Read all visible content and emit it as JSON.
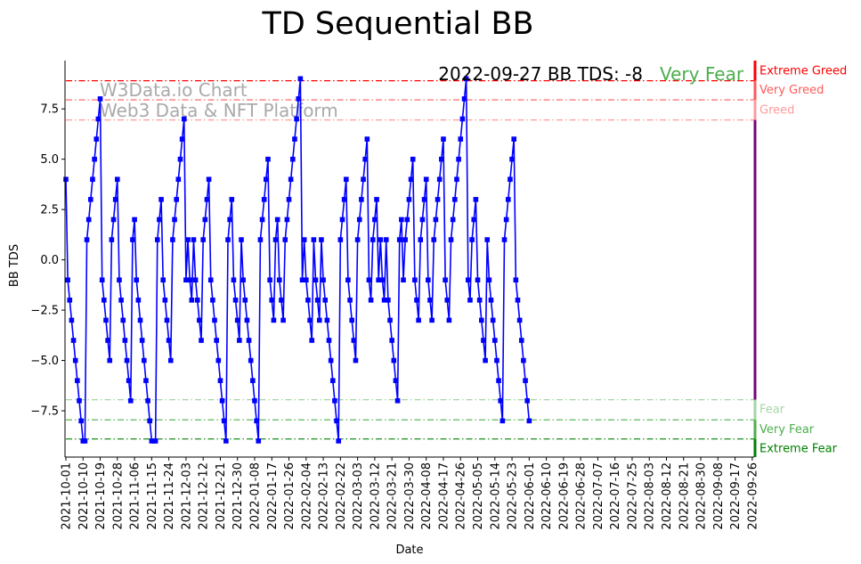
{
  "chart_data": {
    "type": "line",
    "title": "TD Sequential BB",
    "xlabel": "Date",
    "ylabel": "BB TDS",
    "ylim": [
      -9.8,
      9.9
    ],
    "yticks": [
      -7.5,
      -5.0,
      -2.5,
      0.0,
      2.5,
      5.0,
      7.5
    ],
    "ytick_labels": [
      "−7.5",
      "−5.0",
      "−2.5",
      "0.0",
      "2.5",
      "5.0",
      "7.5"
    ],
    "x_start": "2021-10-01",
    "x_end": "2022-09-27",
    "xtick_labels": [
      "2021-10-01",
      "2021-10-10",
      "2021-10-19",
      "2021-10-28",
      "2021-11-06",
      "2021-11-15",
      "2021-11-24",
      "2021-12-03",
      "2021-12-12",
      "2021-12-21",
      "2021-12-30",
      "2022-01-08",
      "2022-01-17",
      "2022-01-26",
      "2022-02-04",
      "2022-02-13",
      "2022-02-22",
      "2022-03-03",
      "2022-03-12",
      "2022-03-21",
      "2022-03-30",
      "2022-04-08",
      "2022-04-17",
      "2022-04-26",
      "2022-05-05",
      "2022-05-14",
      "2022-05-23",
      "2022-06-01",
      "2022-06-10",
      "2022-06-19",
      "2022-06-28",
      "2022-07-07",
      "2022-07-16",
      "2022-07-25",
      "2022-08-03",
      "2022-08-12",
      "2022-08-21",
      "2022-08-30",
      "2022-09-08",
      "2022-09-17",
      "2022-09-26"
    ],
    "series": [
      {
        "color": "#0000ff",
        "marker": "square",
        "values": [
          4,
          -1,
          -2,
          -3,
          -4,
          -5,
          -6,
          -7,
          -8,
          -9,
          -9,
          1,
          2,
          3,
          4,
          5,
          6,
          7,
          8,
          -1,
          -2,
          -3,
          -4,
          -5,
          1,
          2,
          3,
          4,
          -1,
          -2,
          -3,
          -4,
          -5,
          -6,
          -7,
          1,
          2,
          -1,
          -2,
          -3,
          -4,
          -5,
          -6,
          -7,
          -8,
          -9,
          -9,
          -9,
          1,
          2,
          3,
          -1,
          -2,
          -3,
          -4,
          -5,
          1,
          2,
          3,
          4,
          5,
          6,
          7,
          -1,
          1,
          -1,
          -2,
          1,
          -1,
          -2,
          -3,
          -4,
          1,
          2,
          3,
          4,
          -1,
          -2,
          -3,
          -4,
          -5,
          -6,
          -7,
          -8,
          -9,
          1,
          2,
          3,
          -1,
          -2,
          -3,
          -4,
          1,
          -1,
          -2,
          -3,
          -4,
          -5,
          -6,
          -7,
          -8,
          -9,
          1,
          2,
          3,
          4,
          5,
          -1,
          -2,
          -3,
          1,
          2,
          -1,
          -2,
          -3,
          1,
          2,
          3,
          4,
          5,
          6,
          7,
          8,
          9,
          -1,
          1,
          -1,
          -2,
          -3,
          -4,
          1,
          -1,
          -2,
          -3,
          1,
          -1,
          -2,
          -3,
          -4,
          -5,
          -6,
          -7,
          -8,
          -9,
          1,
          2,
          3,
          4,
          -1,
          -2,
          -3,
          -4,
          -5,
          1,
          2,
          3,
          4,
          5,
          6,
          -1,
          -2,
          1,
          2,
          3,
          -1,
          1,
          -1,
          -2,
          1,
          -2,
          -3,
          -4,
          -5,
          -6,
          -7,
          1,
          2,
          -1,
          1,
          2,
          3,
          4,
          5,
          -1,
          -2,
          -3,
          1,
          2,
          3,
          4,
          -1,
          -2,
          -3,
          1,
          2,
          3,
          4,
          5,
          6,
          -1,
          -2,
          -3,
          1,
          2,
          3,
          4,
          5,
          6,
          7,
          8,
          9,
          -1,
          -2,
          1,
          2,
          3,
          -1,
          -2,
          -3,
          -4,
          -5,
          1,
          -1,
          -2,
          -3,
          -4,
          -5,
          -6,
          -7,
          -8,
          1,
          2,
          3,
          4,
          5,
          6,
          -1,
          -2,
          -3,
          -4,
          -5,
          -6,
          -7,
          -8
        ]
      }
    ],
    "reference_lines": [
      {
        "label": "Extreme Greed",
        "y": 8.9,
        "color": "#ff0000"
      },
      {
        "label": "Very Greed",
        "y": 7.95,
        "color": "#ff5a5a"
      },
      {
        "label": "Greed",
        "y": 6.95,
        "color": "#ff9b9b"
      },
      {
        "label": "Fear",
        "y": -6.95,
        "color": "#a5d6a5"
      },
      {
        "label": "Very Fear",
        "y": -7.95,
        "color": "#4cae4c"
      },
      {
        "label": "Extreme Fear",
        "y": -8.9,
        "color": "#008000"
      }
    ],
    "annotation": {
      "date_text": "2022-09-27 BB TDS: -8",
      "status_text": "Very Fear",
      "status_color": "#4cae4c"
    },
    "watermark": [
      "W3Data.io Chart",
      "Web3 Data & NFT Platform"
    ],
    "legend": "right-side color bar labels",
    "grid": false
  }
}
